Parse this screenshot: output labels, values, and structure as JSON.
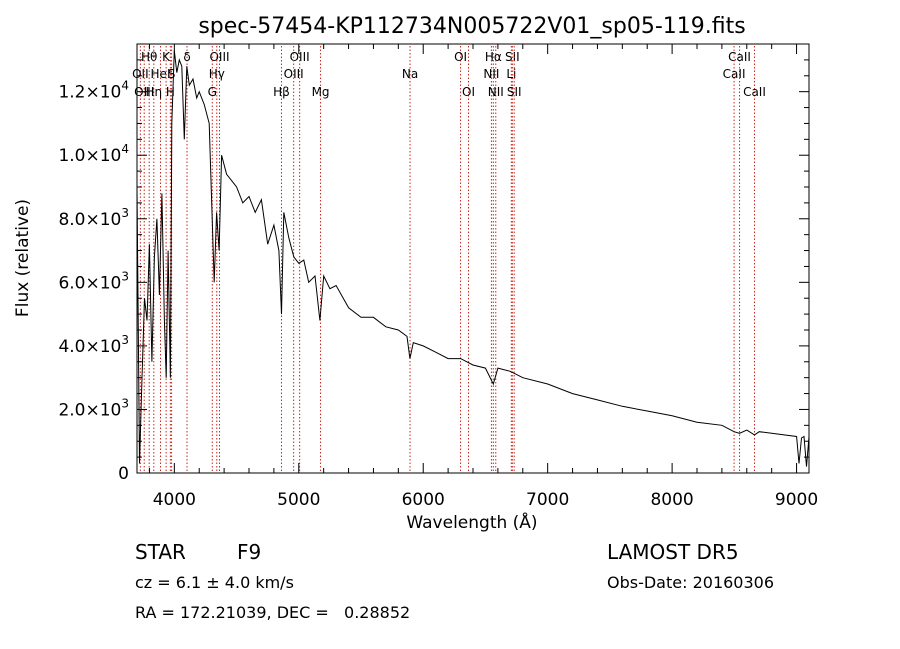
{
  "chart_data": {
    "type": "line",
    "title": "spec-57454-KP112734N005722V01_sp05-119.fits",
    "xlabel": "Wavelength (Å)",
    "ylabel": "Flux (relative)",
    "xlim": [
      3700,
      9100
    ],
    "ylim": [
      0,
      13500
    ],
    "x_ticks": [
      4000,
      5000,
      6000,
      7000,
      8000,
      9000
    ],
    "x_tick_labels": [
      "4000",
      "5000",
      "6000",
      "7000",
      "8000",
      "9000"
    ],
    "y_ticks": [
      0,
      2000,
      4000,
      6000,
      8000,
      10000,
      12000
    ],
    "y_tick_labels": [
      {
        "mantissa": "0",
        "exp": ""
      },
      {
        "mantissa": "2.0×10",
        "exp": "3"
      },
      {
        "mantissa": "4.0×10",
        "exp": "3"
      },
      {
        "mantissa": "6.0×10",
        "exp": "3"
      },
      {
        "mantissa": "8.0×10",
        "exp": "3"
      },
      {
        "mantissa": "1.0×10",
        "exp": "4"
      },
      {
        "mantissa": "1.2×10",
        "exp": "4"
      }
    ],
    "grid": false,
    "line_color": "#000000",
    "marker_color": "#c8261d",
    "series": [
      {
        "x": [
          3700,
          3720,
          3740,
          3760,
          3780,
          3800,
          3820,
          3840,
          3860,
          3880,
          3900,
          3920,
          3935,
          3950,
          3968,
          3980,
          4000,
          4020,
          4040,
          4060,
          4080,
          4100,
          4120,
          4150,
          4180,
          4200,
          4240,
          4280,
          4300,
          4320,
          4340,
          4360,
          4380,
          4420,
          4460,
          4500,
          4550,
          4600,
          4650,
          4700,
          4750,
          4800,
          4840,
          4861,
          4880,
          4920,
          4960,
          5000,
          5040,
          5080,
          5130,
          5170,
          5200,
          5250,
          5300,
          5400,
          5500,
          5600,
          5700,
          5800,
          5870,
          5893,
          5920,
          6000,
          6100,
          6200,
          6300,
          6400,
          6500,
          6563,
          6600,
          6700,
          6800,
          7000,
          7200,
          7400,
          7600,
          7800,
          8000,
          8200,
          8400,
          8498,
          8542,
          8600,
          8662,
          8700,
          8800,
          8900,
          9000,
          9020,
          9040,
          9060,
          9080,
          9100
        ],
        "y": [
          9000,
          300,
          3000,
          5500,
          4800,
          7200,
          3500,
          6800,
          8000,
          5600,
          8800,
          4800,
          3000,
          7000,
          3000,
          11000,
          13300,
          12600,
          13000,
          12800,
          10500,
          12800,
          12200,
          12400,
          11800,
          12000,
          11600,
          11000,
          8500,
          6000,
          8200,
          7000,
          10000,
          9400,
          9200,
          9000,
          8500,
          8700,
          8200,
          8600,
          7200,
          7800,
          7000,
          5000,
          8200,
          7400,
          6800,
          6600,
          6700,
          6000,
          6200,
          4800,
          6200,
          5800,
          5900,
          5200,
          4900,
          4900,
          4600,
          4500,
          4300,
          3600,
          4100,
          4000,
          3800,
          3600,
          3600,
          3400,
          3300,
          2800,
          3300,
          3200,
          3000,
          2800,
          2500,
          2300,
          2100,
          1950,
          1800,
          1600,
          1500,
          1300,
          1250,
          1350,
          1200,
          1300,
          1250,
          1200,
          1150,
          300,
          1100,
          1150,
          200,
          1150
        ]
      }
    ],
    "lines": [
      {
        "name": "Hθ",
        "x": 3798,
        "row": 0
      },
      {
        "name": "OII",
        "x": 3727,
        "row": 1
      },
      {
        "name": "OIII",
        "x": 3758,
        "row": 2
      },
      {
        "name": "K",
        "x": 3934,
        "row": 0
      },
      {
        "name": "HeI",
        "x": 3889,
        "row": 1
      },
      {
        "name": "Hη",
        "x": 3835,
        "row": 2
      },
      {
        "name": "δ",
        "x": 4102,
        "row": 0
      },
      {
        "name": "S",
        "x": 3978,
        "row": 1
      },
      {
        "name": "H",
        "x": 3968,
        "row": 2
      },
      {
        "name": "OIII",
        "x": 4363,
        "row": 0
      },
      {
        "name": "Hγ",
        "x": 4341,
        "row": 1
      },
      {
        "name": "G",
        "x": 4305,
        "row": 2
      },
      {
        "name": "OIII",
        "x": 5007,
        "row": 0
      },
      {
        "name": "OIII",
        "x": 4959,
        "row": 1
      },
      {
        "name": "Hβ",
        "x": 4861,
        "row": 2
      },
      {
        "name": "Mg",
        "x": 5175,
        "row": 2
      },
      {
        "name": "Na",
        "x": 5894,
        "row": 1
      },
      {
        "name": "OI",
        "x": 6300,
        "row": 0
      },
      {
        "name": "OI",
        "x": 6364,
        "row": 2
      },
      {
        "name": "Hα",
        "x": 6563,
        "row": 0
      },
      {
        "name": "SII",
        "x": 6716,
        "row": 0
      },
      {
        "name": "NII",
        "x": 6548,
        "row": 1
      },
      {
        "name": "Li",
        "x": 6708,
        "row": 1
      },
      {
        "name": "NII",
        "x": 6583,
        "row": 2
      },
      {
        "name": "SII",
        "x": 6731,
        "row": 2
      },
      {
        "name": "CaII",
        "x": 8542,
        "row": 0
      },
      {
        "name": "CaII",
        "x": 8498,
        "row": 1
      },
      {
        "name": "CaII",
        "x": 8662,
        "row": 2
      }
    ]
  },
  "info": {
    "class_label": "STAR",
    "subclass": "F9",
    "cz": "cz = 6.1 ± 4.0 km/s",
    "coords": "RA = 172.21039, DEC =   0.28852",
    "survey": "LAMOST DR5",
    "obs_date": "Obs-Date: 20160306"
  }
}
